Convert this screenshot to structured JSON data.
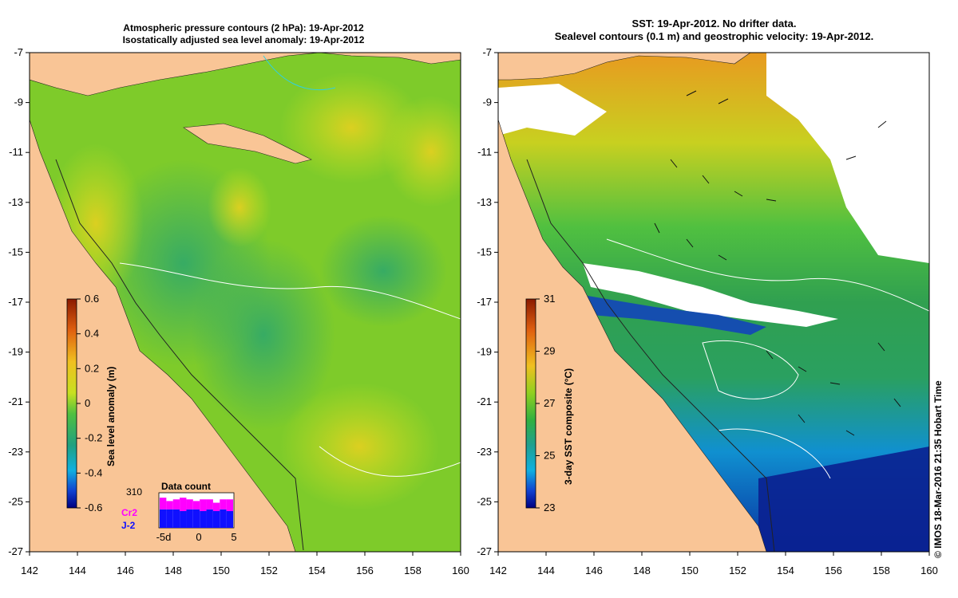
{
  "left_panel": {
    "title_line1": "Atmospheric pressure contours (2 hPa): 19-Apr-2012",
    "title_line2": "Isostatically adjusted sea level anomaly: 19-Apr-2012",
    "colorbar_label": "Sea level anomaly (m)",
    "colorbar_ticks": [
      "0.6",
      "0.4",
      "0.2",
      "0",
      "-0.2",
      "-0.4",
      "-0.6"
    ],
    "data_count": {
      "title": "Data count",
      "max_label": "310",
      "series": [
        {
          "name": "Cr2",
          "color": "#ff00ff"
        },
        {
          "name": "J-2",
          "color": "#1010ff"
        }
      ],
      "x_ticks": [
        "-5d",
        "0",
        "5"
      ]
    }
  },
  "right_panel": {
    "title_line1": "SST: 19-Apr-2012. No drifter data.",
    "title_line2": "Sealevel contours (0.1 m) and geostrophic velocity: 19-Apr-2012.",
    "colorbar_label": "3-day SST composite (°C)",
    "colorbar_ticks": [
      "31",
      "29",
      "27",
      "25",
      "23"
    ]
  },
  "axes": {
    "x_ticks": [
      "142",
      "144",
      "146",
      "148",
      "150",
      "152",
      "154",
      "156",
      "158",
      "160"
    ],
    "y_ticks": [
      "-7",
      "-9",
      "-11",
      "-13",
      "-15",
      "-17",
      "-19",
      "-21",
      "-23",
      "-25",
      "-27"
    ]
  },
  "copyright": "© IMOS 18-Mar-2016 21:35 Hobart Time",
  "colors": {
    "land": "#f9c596",
    "slaa_green": "#7ed321",
    "sst_low": "#0000a0",
    "sst_high": "#aa2200"
  }
}
